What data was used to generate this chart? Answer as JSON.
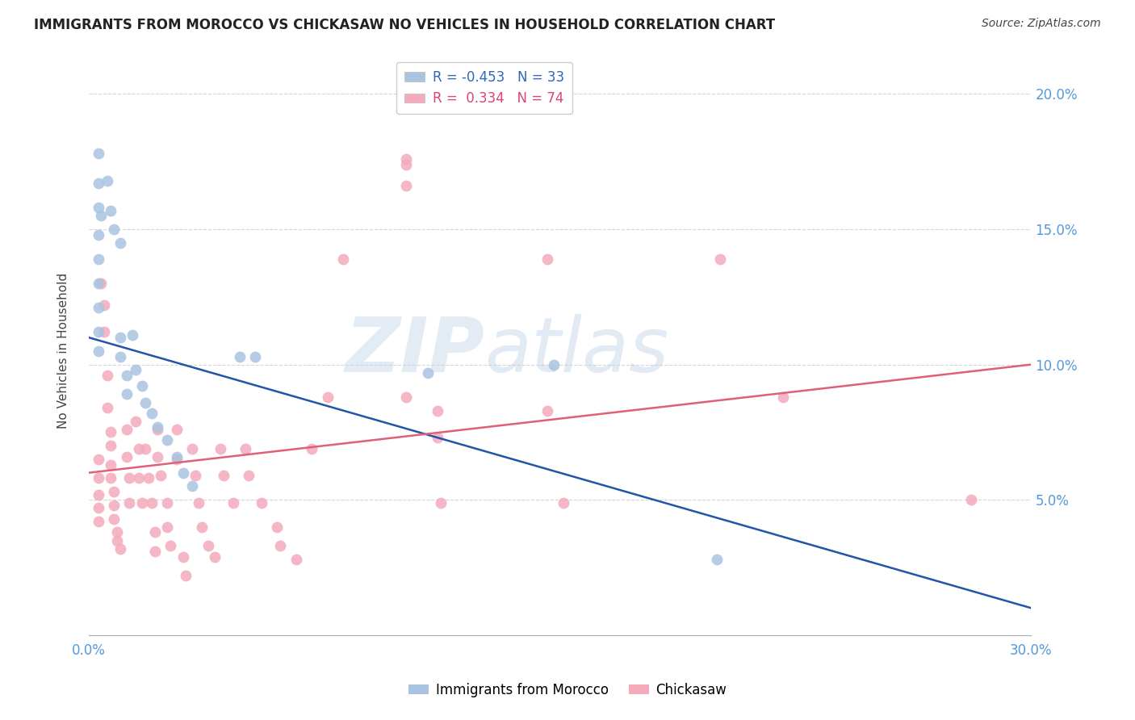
{
  "title": "IMMIGRANTS FROM MOROCCO VS CHICKASAW NO VEHICLES IN HOUSEHOLD CORRELATION CHART",
  "source": "Source: ZipAtlas.com",
  "ylabel": "No Vehicles in Household",
  "xlim": [
    0.0,
    0.3
  ],
  "ylim": [
    0.0,
    0.21
  ],
  "yticks": [
    0.05,
    0.1,
    0.15,
    0.2
  ],
  "ytick_labels": [
    "5.0%",
    "10.0%",
    "15.0%",
    "20.0%"
  ],
  "xticks": [
    0.0,
    0.05,
    0.1,
    0.15,
    0.2,
    0.25,
    0.3
  ],
  "xtick_labels": [
    "0.0%",
    "",
    "",
    "",
    "",
    "",
    "30.0%"
  ],
  "legend_blue_r": "-0.453",
  "legend_blue_n": "33",
  "legend_pink_r": "0.334",
  "legend_pink_n": "74",
  "blue_color": "#A8C4E0",
  "pink_color": "#F4AABB",
  "blue_line_color": "#2255AA",
  "pink_line_color": "#E0607A",
  "watermark_zip": "ZIP",
  "watermark_atlas": "atlas",
  "blue_scatter": [
    [
      0.003,
      0.178
    ],
    [
      0.003,
      0.167
    ],
    [
      0.003,
      0.158
    ],
    [
      0.003,
      0.148
    ],
    [
      0.003,
      0.139
    ],
    [
      0.003,
      0.13
    ],
    [
      0.003,
      0.121
    ],
    [
      0.003,
      0.112
    ],
    [
      0.003,
      0.105
    ],
    [
      0.004,
      0.155
    ],
    [
      0.006,
      0.168
    ],
    [
      0.007,
      0.157
    ],
    [
      0.008,
      0.15
    ],
    [
      0.01,
      0.145
    ],
    [
      0.01,
      0.11
    ],
    [
      0.01,
      0.103
    ],
    [
      0.012,
      0.096
    ],
    [
      0.012,
      0.089
    ],
    [
      0.014,
      0.111
    ],
    [
      0.015,
      0.098
    ],
    [
      0.017,
      0.092
    ],
    [
      0.018,
      0.086
    ],
    [
      0.02,
      0.082
    ],
    [
      0.022,
      0.077
    ],
    [
      0.025,
      0.072
    ],
    [
      0.028,
      0.066
    ],
    [
      0.03,
      0.06
    ],
    [
      0.033,
      0.055
    ],
    [
      0.048,
      0.103
    ],
    [
      0.053,
      0.103
    ],
    [
      0.148,
      0.1
    ],
    [
      0.2,
      0.028
    ],
    [
      0.108,
      0.097
    ]
  ],
  "pink_scatter": [
    [
      0.003,
      0.065
    ],
    [
      0.003,
      0.058
    ],
    [
      0.003,
      0.052
    ],
    [
      0.003,
      0.047
    ],
    [
      0.003,
      0.042
    ],
    [
      0.004,
      0.13
    ],
    [
      0.005,
      0.122
    ],
    [
      0.005,
      0.112
    ],
    [
      0.006,
      0.096
    ],
    [
      0.006,
      0.084
    ],
    [
      0.007,
      0.075
    ],
    [
      0.007,
      0.07
    ],
    [
      0.007,
      0.063
    ],
    [
      0.007,
      0.058
    ],
    [
      0.008,
      0.053
    ],
    [
      0.008,
      0.048
    ],
    [
      0.008,
      0.043
    ],
    [
      0.009,
      0.038
    ],
    [
      0.009,
      0.035
    ],
    [
      0.01,
      0.032
    ],
    [
      0.012,
      0.076
    ],
    [
      0.012,
      0.066
    ],
    [
      0.013,
      0.058
    ],
    [
      0.013,
      0.049
    ],
    [
      0.015,
      0.079
    ],
    [
      0.016,
      0.069
    ],
    [
      0.016,
      0.058
    ],
    [
      0.017,
      0.049
    ],
    [
      0.018,
      0.069
    ],
    [
      0.019,
      0.058
    ],
    [
      0.02,
      0.049
    ],
    [
      0.021,
      0.038
    ],
    [
      0.021,
      0.031
    ],
    [
      0.022,
      0.076
    ],
    [
      0.022,
      0.066
    ],
    [
      0.023,
      0.059
    ],
    [
      0.025,
      0.049
    ],
    [
      0.025,
      0.04
    ],
    [
      0.026,
      0.033
    ],
    [
      0.028,
      0.076
    ],
    [
      0.028,
      0.065
    ],
    [
      0.03,
      0.029
    ],
    [
      0.031,
      0.022
    ],
    [
      0.033,
      0.069
    ],
    [
      0.034,
      0.059
    ],
    [
      0.035,
      0.049
    ],
    [
      0.036,
      0.04
    ],
    [
      0.038,
      0.033
    ],
    [
      0.04,
      0.029
    ],
    [
      0.042,
      0.069
    ],
    [
      0.043,
      0.059
    ],
    [
      0.046,
      0.049
    ],
    [
      0.05,
      0.069
    ],
    [
      0.051,
      0.059
    ],
    [
      0.055,
      0.049
    ],
    [
      0.06,
      0.04
    ],
    [
      0.061,
      0.033
    ],
    [
      0.066,
      0.028
    ],
    [
      0.071,
      0.069
    ],
    [
      0.076,
      0.088
    ],
    [
      0.081,
      0.139
    ],
    [
      0.101,
      0.174
    ],
    [
      0.101,
      0.166
    ],
    [
      0.101,
      0.088
    ],
    [
      0.111,
      0.083
    ],
    [
      0.111,
      0.073
    ],
    [
      0.112,
      0.049
    ],
    [
      0.146,
      0.139
    ],
    [
      0.146,
      0.083
    ],
    [
      0.151,
      0.049
    ],
    [
      0.201,
      0.139
    ],
    [
      0.221,
      0.088
    ],
    [
      0.281,
      0.05
    ],
    [
      0.101,
      0.176
    ]
  ],
  "blue_line_x": [
    0.0,
    0.3
  ],
  "blue_line_y_start": 0.11,
  "blue_line_y_end": 0.01,
  "pink_line_x": [
    0.0,
    0.3
  ],
  "pink_line_y_start": 0.06,
  "pink_line_y_end": 0.1
}
